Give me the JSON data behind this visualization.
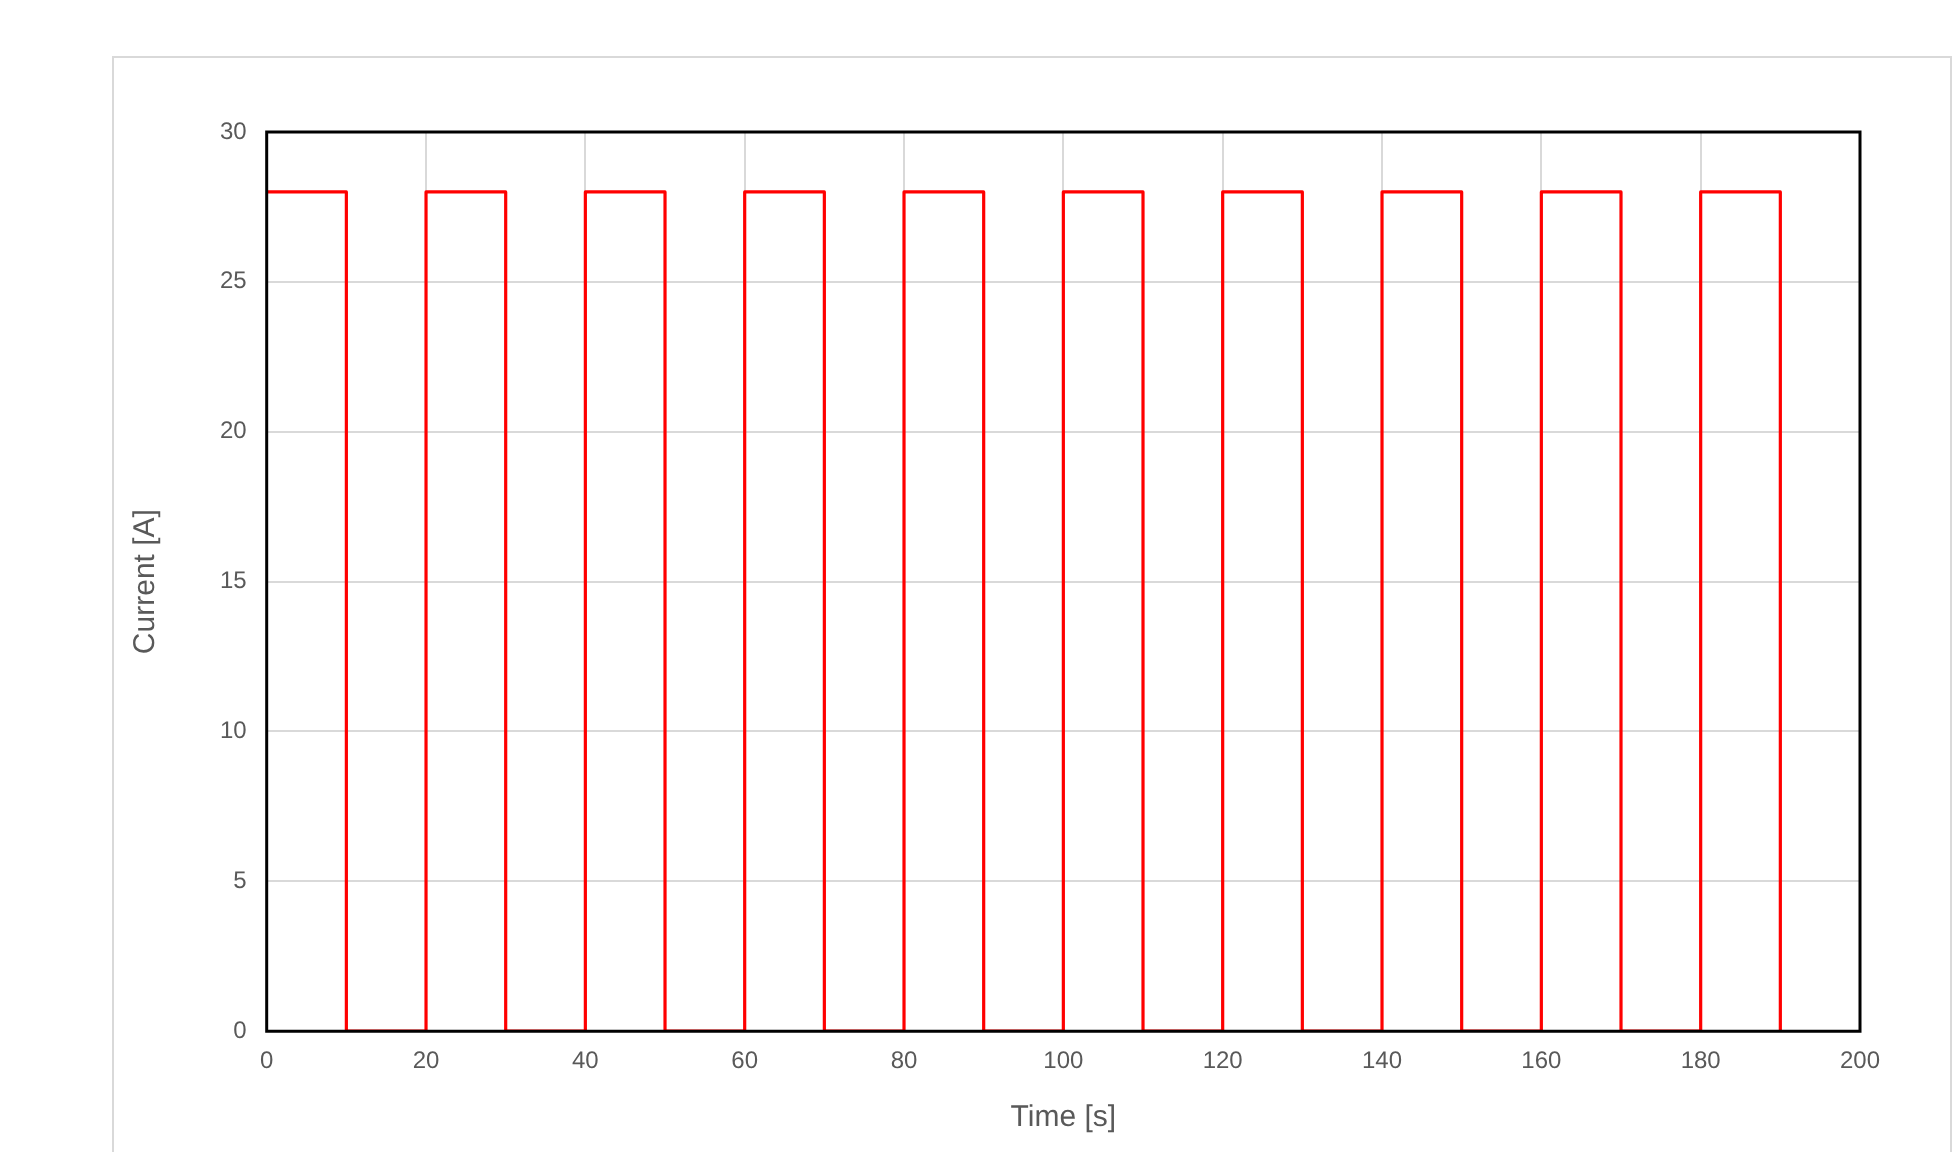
{
  "chart_data": {
    "type": "step",
    "xlabel": "Time [s]",
    "ylabel": "Current [A]",
    "x": [
      0,
      10,
      20,
      30,
      40,
      50,
      60,
      70,
      80,
      90,
      100,
      110,
      120,
      130,
      140,
      150,
      160,
      170,
      180,
      190
    ],
    "series": [
      {
        "color": "#ff0000",
        "values": [
          28,
          0,
          28,
          0,
          28,
          0,
          28,
          0,
          28,
          0,
          28,
          0,
          28,
          0,
          28,
          0,
          28,
          0,
          28,
          0
        ]
      }
    ],
    "xlim": [
      0,
      200
    ],
    "xticks": [
      0,
      20,
      40,
      60,
      80,
      100,
      120,
      140,
      160,
      180,
      200
    ],
    "ylim": [
      0,
      30
    ],
    "yticks": [
      0,
      5,
      10,
      15,
      20,
      25,
      30
    ],
    "grid": true,
    "legend": false
  }
}
